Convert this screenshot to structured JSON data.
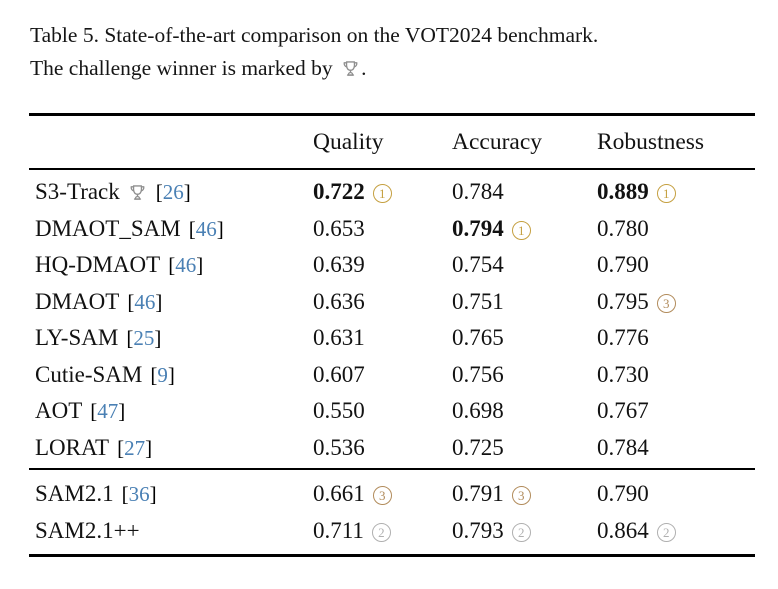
{
  "caption": {
    "line1": "Table 5. State-of-the-art comparison on the VOT2024 benchmark.",
    "line2_prefix": "The challenge winner is marked by ",
    "line2_suffix": "."
  },
  "colors": {
    "citation_blue": "#4A80B4",
    "trophy_gray": "#8F8F8F",
    "medals": {
      "1": "#C5A041",
      "2": "#B0B0B0",
      "3": "#B28C5C"
    }
  },
  "table": {
    "columns": [
      "Quality",
      "Accuracy",
      "Robustness"
    ],
    "cite_open": "[",
    "cite_close": "]",
    "groups": [
      {
        "rows": [
          {
            "method": "S3-Track",
            "trophy": true,
            "cite": "26",
            "cells": [
              {
                "value": "0.722",
                "bold": true,
                "medal": 1
              },
              {
                "value": "0.784"
              },
              {
                "value": "0.889",
                "bold": true,
                "medal": 1
              }
            ]
          },
          {
            "method": "DMAOT_SAM",
            "cite": "46",
            "cells": [
              {
                "value": "0.653"
              },
              {
                "value": "0.794",
                "bold": true,
                "medal": 1
              },
              {
                "value": "0.780"
              }
            ]
          },
          {
            "method": "HQ-DMAOT",
            "cite": "46",
            "cells": [
              {
                "value": "0.639"
              },
              {
                "value": "0.754"
              },
              {
                "value": "0.790"
              }
            ]
          },
          {
            "method": "DMAOT",
            "cite": "46",
            "cells": [
              {
                "value": "0.636"
              },
              {
                "value": "0.751"
              },
              {
                "value": "0.795",
                "medal": 3
              }
            ]
          },
          {
            "method": "LY-SAM",
            "cite": "25",
            "cells": [
              {
                "value": "0.631"
              },
              {
                "value": "0.765"
              },
              {
                "value": "0.776"
              }
            ]
          },
          {
            "method": "Cutie-SAM",
            "cite": "9",
            "cells": [
              {
                "value": "0.607"
              },
              {
                "value": "0.756"
              },
              {
                "value": "0.730"
              }
            ]
          },
          {
            "method": "AOT",
            "cite": "47",
            "cells": [
              {
                "value": "0.550"
              },
              {
                "value": "0.698"
              },
              {
                "value": "0.767"
              }
            ]
          },
          {
            "method": "LORAT",
            "cite": "27",
            "cells": [
              {
                "value": "0.536"
              },
              {
                "value": "0.725"
              },
              {
                "value": "0.784"
              }
            ]
          }
        ]
      },
      {
        "rows": [
          {
            "method": "SAM2.1",
            "cite": "36",
            "cells": [
              {
                "value": "0.661",
                "medal": 3
              },
              {
                "value": "0.791",
                "medal": 3
              },
              {
                "value": "0.790"
              }
            ]
          },
          {
            "method": "SAM2.1++",
            "cells": [
              {
                "value": "0.711",
                "medal": 2
              },
              {
                "value": "0.793",
                "medal": 2
              },
              {
                "value": "0.864",
                "medal": 2
              }
            ]
          }
        ]
      }
    ]
  }
}
